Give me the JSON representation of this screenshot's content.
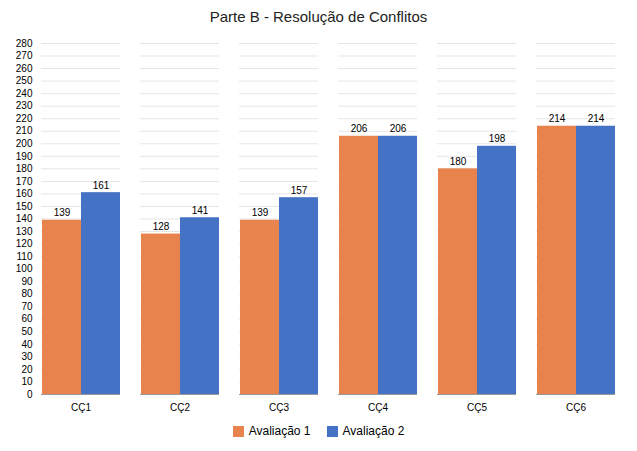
{
  "chart_data": {
    "type": "bar",
    "title": "Parte B - Resolução de Conflitos",
    "categories": [
      "CÇ1",
      "CÇ2",
      "CÇ3",
      "CÇ4",
      "CÇ5",
      "CÇ6"
    ],
    "series": [
      {
        "name": "Avaliação 1",
        "color": "#E8834E",
        "values": [
          139,
          128,
          139,
          206,
          180,
          214
        ]
      },
      {
        "name": "Avaliação 2",
        "color": "#4472C4",
        "values": [
          161,
          141,
          157,
          206,
          198,
          214
        ]
      }
    ],
    "ylim": [
      0,
      280
    ],
    "yticks": [
      0,
      10,
      20,
      30,
      40,
      50,
      60,
      70,
      80,
      90,
      100,
      110,
      120,
      130,
      140,
      150,
      160,
      170,
      180,
      190,
      200,
      210,
      220,
      230,
      240,
      250,
      260,
      270,
      280
    ],
    "grid": true,
    "data_labels": true,
    "legend": "bottom"
  }
}
